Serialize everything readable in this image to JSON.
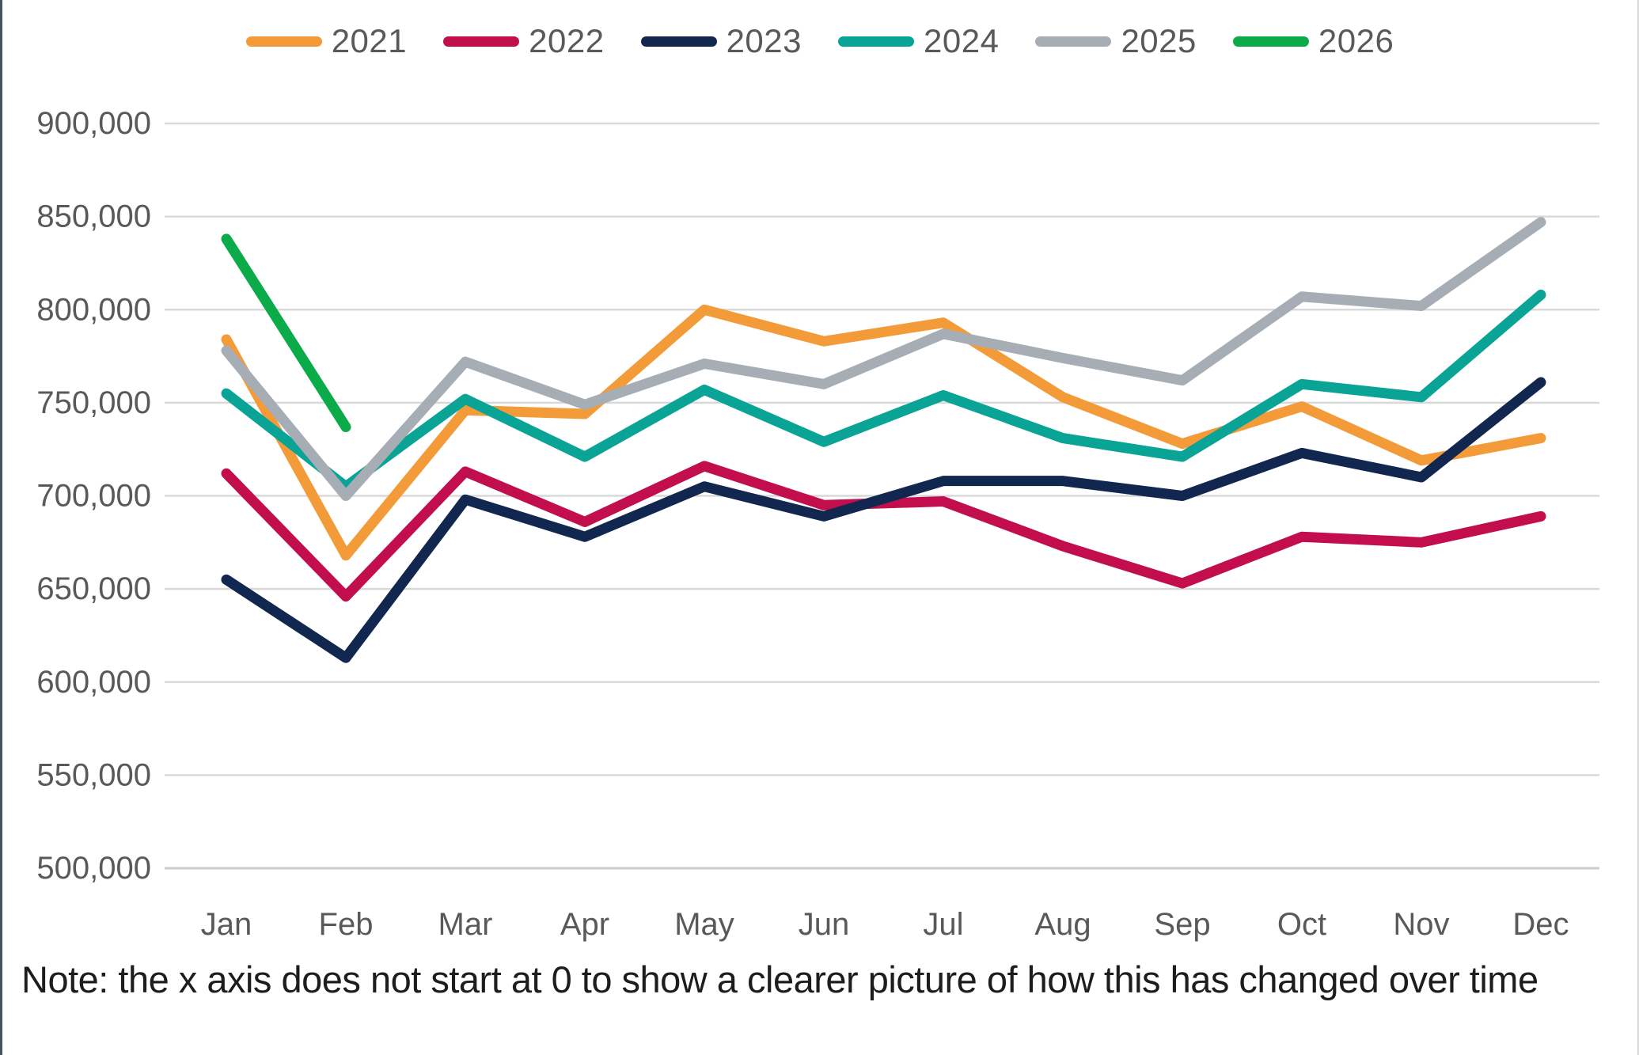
{
  "chart_data": {
    "type": "line",
    "title": "",
    "xlabel": "",
    "ylabel": "",
    "categories": [
      "Jan",
      "Feb",
      "Mar",
      "Apr",
      "May",
      "Jun",
      "Jul",
      "Aug",
      "Sep",
      "Oct",
      "Nov",
      "Dec"
    ],
    "series": [
      {
        "name": "2021",
        "color": "#F49B39",
        "values": [
          784000,
          668000,
          746000,
          744000,
          800000,
          783000,
          793000,
          753000,
          728000,
          748000,
          719000,
          731000
        ]
      },
      {
        "name": "2022",
        "color": "#C30E4E",
        "values": [
          712000,
          646000,
          713000,
          686000,
          716000,
          695000,
          697000,
          673000,
          653000,
          678000,
          675000,
          689000
        ]
      },
      {
        "name": "2023",
        "color": "#12274F",
        "values": [
          655000,
          613000,
          698000,
          678000,
          705000,
          689000,
          708000,
          708000,
          700000,
          723000,
          710000,
          761000
        ]
      },
      {
        "name": "2024",
        "color": "#09A496",
        "values": [
          755000,
          705000,
          752000,
          721000,
          757000,
          729000,
          754000,
          731000,
          721000,
          760000,
          753000,
          808000
        ]
      },
      {
        "name": "2025",
        "color": "#A6ADB4",
        "values": [
          778000,
          700000,
          772000,
          749000,
          771000,
          760000,
          787000,
          774000,
          762000,
          807000,
          802000,
          847000
        ]
      },
      {
        "name": "2026",
        "color": "#0BAB49",
        "values": [
          838000,
          737000,
          null,
          null,
          null,
          null,
          null,
          null,
          null,
          null,
          null,
          null
        ]
      }
    ],
    "ylim": [
      500000,
      900000
    ],
    "ytick_step": 50000,
    "grid": "horizontal-only",
    "gridline_color": "#D9D9D9",
    "axis_label_color": "#595959",
    "legend_position": "top-center"
  },
  "note": {
    "text": "Note: the x axis does not start at 0 to show a clearer picture of how this has changed over time"
  }
}
